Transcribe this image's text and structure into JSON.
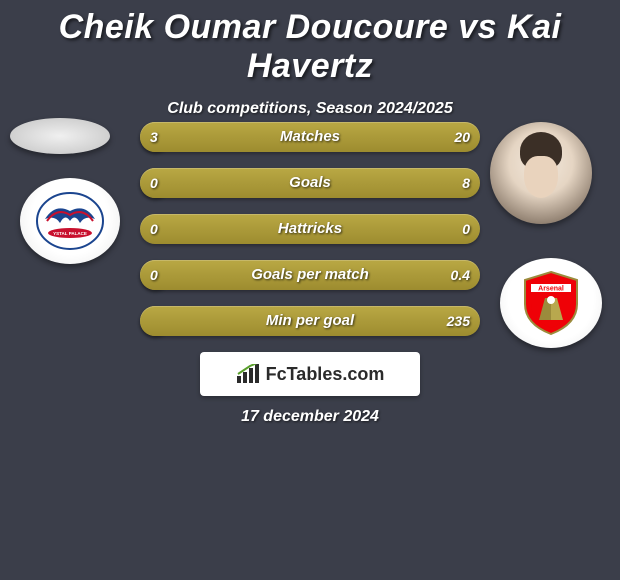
{
  "header": {
    "title": "Cheik Oumar Doucoure vs Kai Havertz",
    "subtitle": "Club competitions, Season 2024/2025"
  },
  "player_left": {
    "name": "Cheik Oumar Doucoure",
    "club": "Crystal Palace",
    "club_primary_color": "#1b458f",
    "club_accent_color": "#c8102e"
  },
  "player_right": {
    "name": "Kai Havertz",
    "club": "Arsenal",
    "club_primary_color": "#ef0107",
    "club_accent_color": "#ffffff"
  },
  "stats": {
    "bar_color": "#a89838",
    "background_color": "#3b3e4a",
    "rows": [
      {
        "label": "Matches",
        "left_val": "3",
        "right_val": "20",
        "left_w": 30,
        "right_w": 340
      },
      {
        "label": "Goals",
        "left_val": "0",
        "right_val": "8",
        "left_w": 30,
        "right_w": 340
      },
      {
        "label": "Hattricks",
        "left_val": "0",
        "right_val": "0",
        "left_w": 340,
        "right_w": 0,
        "neutral": true
      },
      {
        "label": "Goals per match",
        "left_val": "0",
        "right_val": "0.4",
        "left_w": 30,
        "right_w": 340
      },
      {
        "label": "Min per goal",
        "left_val": "",
        "right_val": "235",
        "left_w": 30,
        "right_w": 340
      }
    ]
  },
  "branding": {
    "text": "FcTables.com"
  },
  "footer": {
    "date": "17 december 2024"
  }
}
